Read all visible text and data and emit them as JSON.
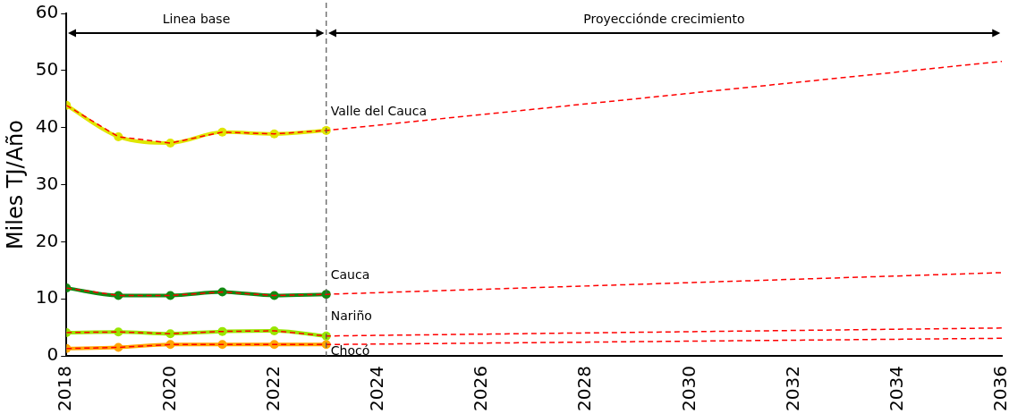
{
  "chart_data": {
    "type": "line",
    "ylabel": "Miles TJ/Año",
    "annotations": [
      "Linea base",
      "Proyecciónde crecimiento"
    ],
    "xlim": [
      2018,
      2036
    ],
    "xticks": [
      2018,
      2020,
      2022,
      2024,
      2026,
      2028,
      2030,
      2032,
      2034,
      2036
    ],
    "ylim": [
      0,
      60
    ],
    "yticks": [
      0,
      10,
      20,
      30,
      40,
      50,
      60
    ],
    "grid": false,
    "legend": false,
    "ref_lines": [
      {
        "axis": "x",
        "value": 2023,
        "color": "#555555",
        "line_style": "dashed"
      }
    ],
    "series": [
      {
        "name": "Valle del Cauca",
        "color": "#dfe600",
        "marker": "circle",
        "line_style": "solid",
        "x": [
          2018,
          2019,
          2020,
          2021,
          2022,
          2023
        ],
        "values": [
          43.9,
          38.4,
          37.3,
          39.2,
          38.9,
          39.5
        ]
      },
      {
        "name": "Cauca",
        "color": "#118a11",
        "marker": "circle",
        "line_style": "solid",
        "x": [
          2018,
          2019,
          2020,
          2021,
          2022,
          2023
        ],
        "values": [
          11.9,
          10.6,
          10.6,
          11.2,
          10.6,
          10.8
        ]
      },
      {
        "name": "Nariño",
        "color": "#99e600",
        "marker": "circle",
        "line_style": "solid",
        "x": [
          2018,
          2019,
          2020,
          2021,
          2022,
          2023
        ],
        "values": [
          4.1,
          4.2,
          3.9,
          4.3,
          4.4,
          3.5
        ]
      },
      {
        "name": "Chocó",
        "color": "#ffa500",
        "marker": "circle",
        "line_style": "solid",
        "x": [
          2018,
          2019,
          2020,
          2021,
          2022,
          2023
        ],
        "values": [
          1.3,
          1.5,
          2.0,
          2.0,
          2.0,
          2.0
        ]
      },
      {
        "color": "#ff0000",
        "marker": "none",
        "line_style": "dashed",
        "x": [
          2018,
          2019,
          2020,
          2021,
          2022,
          2023,
          2036
        ],
        "values": [
          43.9,
          38.4,
          37.3,
          39.2,
          38.9,
          39.5,
          51.6
        ]
      },
      {
        "color": "#ff0000",
        "marker": "none",
        "line_style": "dashed",
        "x": [
          2018,
          2019,
          2020,
          2021,
          2022,
          2023,
          2036
        ],
        "values": [
          11.9,
          10.6,
          10.6,
          11.2,
          10.6,
          10.8,
          14.6
        ]
      },
      {
        "color": "#ff0000",
        "marker": "none",
        "line_style": "dashed",
        "x": [
          2018,
          2019,
          2020,
          2021,
          2022,
          2023,
          2036
        ],
        "values": [
          4.1,
          4.2,
          3.9,
          4.3,
          4.4,
          3.5,
          4.9
        ]
      },
      {
        "color": "#ff0000",
        "marker": "none",
        "line_style": "dashed",
        "x": [
          2018,
          2019,
          2020,
          2021,
          2022,
          2023,
          2036
        ],
        "values": [
          1.3,
          1.5,
          2.0,
          2.0,
          2.0,
          2.0,
          3.1
        ]
      }
    ]
  }
}
